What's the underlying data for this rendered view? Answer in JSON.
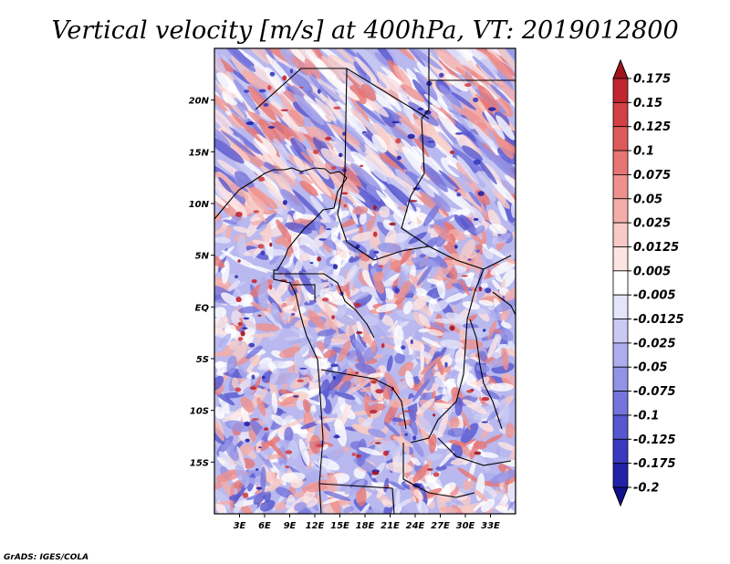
{
  "chart_data": {
    "type": "heatmap",
    "title": "Vertical velocity [m/s] at 400hPa, VT: 2019012800",
    "field": "Vertical velocity",
    "units": "m/s",
    "level": "400hPa",
    "valid_time": "2019012800",
    "lon_range": [
      0,
      36
    ],
    "lat_range": [
      -20,
      25
    ],
    "x_ticks": [
      {
        "value": 3,
        "label": "3E"
      },
      {
        "value": 6,
        "label": "6E"
      },
      {
        "value": 9,
        "label": "9E"
      },
      {
        "value": 12,
        "label": "12E"
      },
      {
        "value": 15,
        "label": "15E"
      },
      {
        "value": 18,
        "label": "18E"
      },
      {
        "value": 21,
        "label": "21E"
      },
      {
        "value": 24,
        "label": "24E"
      },
      {
        "value": 27,
        "label": "27E"
      },
      {
        "value": 30,
        "label": "30E"
      },
      {
        "value": 33,
        "label": "33E"
      }
    ],
    "y_ticks": [
      {
        "value": 20,
        "label": "20N"
      },
      {
        "value": 15,
        "label": "15N"
      },
      {
        "value": 10,
        "label": "10N"
      },
      {
        "value": 5,
        "label": "5N"
      },
      {
        "value": 0,
        "label": "EQ"
      },
      {
        "value": -5,
        "label": "5S"
      },
      {
        "value": -10,
        "label": "10S"
      },
      {
        "value": -15,
        "label": "15S"
      }
    ],
    "colorbar": {
      "orientation": "vertical",
      "placement": "right",
      "levels": [
        "0.175",
        "0.15",
        "0.125",
        "0.1",
        "0.075",
        "0.05",
        "0.025",
        "0.0125",
        "0.005",
        "-0.005",
        "-0.0125",
        "-0.025",
        "-0.05",
        "-0.075",
        "-0.1",
        "-0.125",
        "-0.175",
        "-0.2"
      ],
      "colors": [
        "#a0141e",
        "#c02530",
        "#d23f44",
        "#de5a5a",
        "#e77573",
        "#ee918d",
        "#f4aeaa",
        "#f8cac6",
        "#fce4e2",
        "#ffffff",
        "#e4e4fa",
        "#c9c9f4",
        "#aeaeee",
        "#9292e6",
        "#7474dc",
        "#5757d0",
        "#3a3ac0",
        "#2121a8",
        "#11118c"
      ]
    }
  },
  "credit": "GrADS: IGES/COLA"
}
